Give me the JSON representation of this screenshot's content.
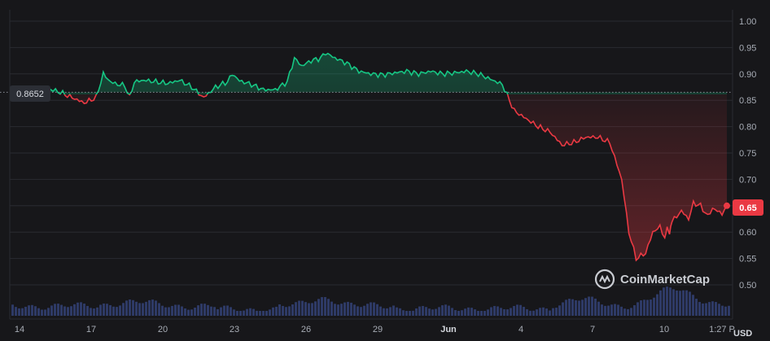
{
  "colors": {
    "background": "#17171a",
    "grid": "#2a2b31",
    "up": "#16c784",
    "down": "#ea3943",
    "volume": "#2e3a66",
    "text": "#a7acb5"
  },
  "watermark": "CoinMarketCap",
  "unit_label": "USD",
  "reference": {
    "value": 0.8652,
    "label": "0.8652"
  },
  "current": {
    "value": 0.65,
    "label": "0.65"
  },
  "chart_data": {
    "type": "line",
    "grid": true,
    "y_ticks": [
      "1.00",
      "0.95",
      "0.90",
      "0.85",
      "0.80",
      "0.75",
      "0.70",
      "0.65",
      "0.60",
      "0.55",
      "0.50"
    ],
    "ylim": [
      0.46,
      1.0
    ],
    "x_ticks": [
      {
        "label": "14",
        "bold": false
      },
      {
        "label": "17",
        "bold": false
      },
      {
        "label": "20",
        "bold": false
      },
      {
        "label": "23",
        "bold": false
      },
      {
        "label": "26",
        "bold": false
      },
      {
        "label": "29",
        "bold": false
      },
      {
        "label": "Jun",
        "bold": true
      },
      {
        "label": "4",
        "bold": false
      },
      {
        "label": "7",
        "bold": false
      },
      {
        "label": "10",
        "bold": false
      },
      {
        "label": "1:27 P",
        "bold": false
      }
    ],
    "xlim_days": [
      0,
      29.4
    ],
    "series": [
      {
        "values_x_days": [
          0,
          0.5,
          1,
          1.5,
          2,
          2.5,
          3,
          3.3,
          3.6,
          3.9,
          4.2,
          4.4,
          4.6,
          5,
          5.5,
          6,
          6.5,
          7,
          7.5,
          8,
          8.5,
          8.7,
          9,
          9.5,
          10,
          10.5,
          11,
          11.3,
          11.6,
          12,
          12.4,
          12.6,
          13,
          13.5,
          14,
          14.5,
          15,
          15.5,
          16,
          16.5,
          17,
          17.5,
          18,
          18.5,
          19,
          19.5,
          20,
          20.5,
          21,
          21.5,
          22,
          22.5,
          23,
          23.5,
          24,
          24.5,
          25,
          25.3,
          25.6,
          26,
          26.3,
          26.6,
          26.8,
          26.9,
          27.0,
          27.1,
          27.3,
          27.5,
          27.8,
          28,
          28.3,
          28.6,
          28.8,
          29.0,
          29.2,
          29.4
        ],
        "values_y": [
          0.865,
          0.86,
          0.872,
          0.865,
          0.855,
          0.845,
          0.855,
          0.9,
          0.885,
          0.88,
          0.878,
          0.855,
          0.885,
          0.888,
          0.885,
          0.882,
          0.888,
          0.875,
          0.855,
          0.875,
          0.885,
          0.9,
          0.887,
          0.88,
          0.87,
          0.87,
          0.885,
          0.93,
          0.915,
          0.925,
          0.93,
          0.94,
          0.93,
          0.92,
          0.905,
          0.9,
          0.898,
          0.902,
          0.905,
          0.9,
          0.905,
          0.9,
          0.902,
          0.905,
          0.9,
          0.89,
          0.88,
          0.83,
          0.815,
          0.8,
          0.79,
          0.765,
          0.77,
          0.78,
          0.78,
          0.77,
          0.7,
          0.6,
          0.55,
          0.56,
          0.6,
          0.61,
          0.59,
          0.605,
          0.6,
          0.62,
          0.63,
          0.64,
          0.625,
          0.655,
          0.65,
          0.63,
          0.645,
          0.64,
          0.635,
          0.65
        ]
      }
    ]
  }
}
